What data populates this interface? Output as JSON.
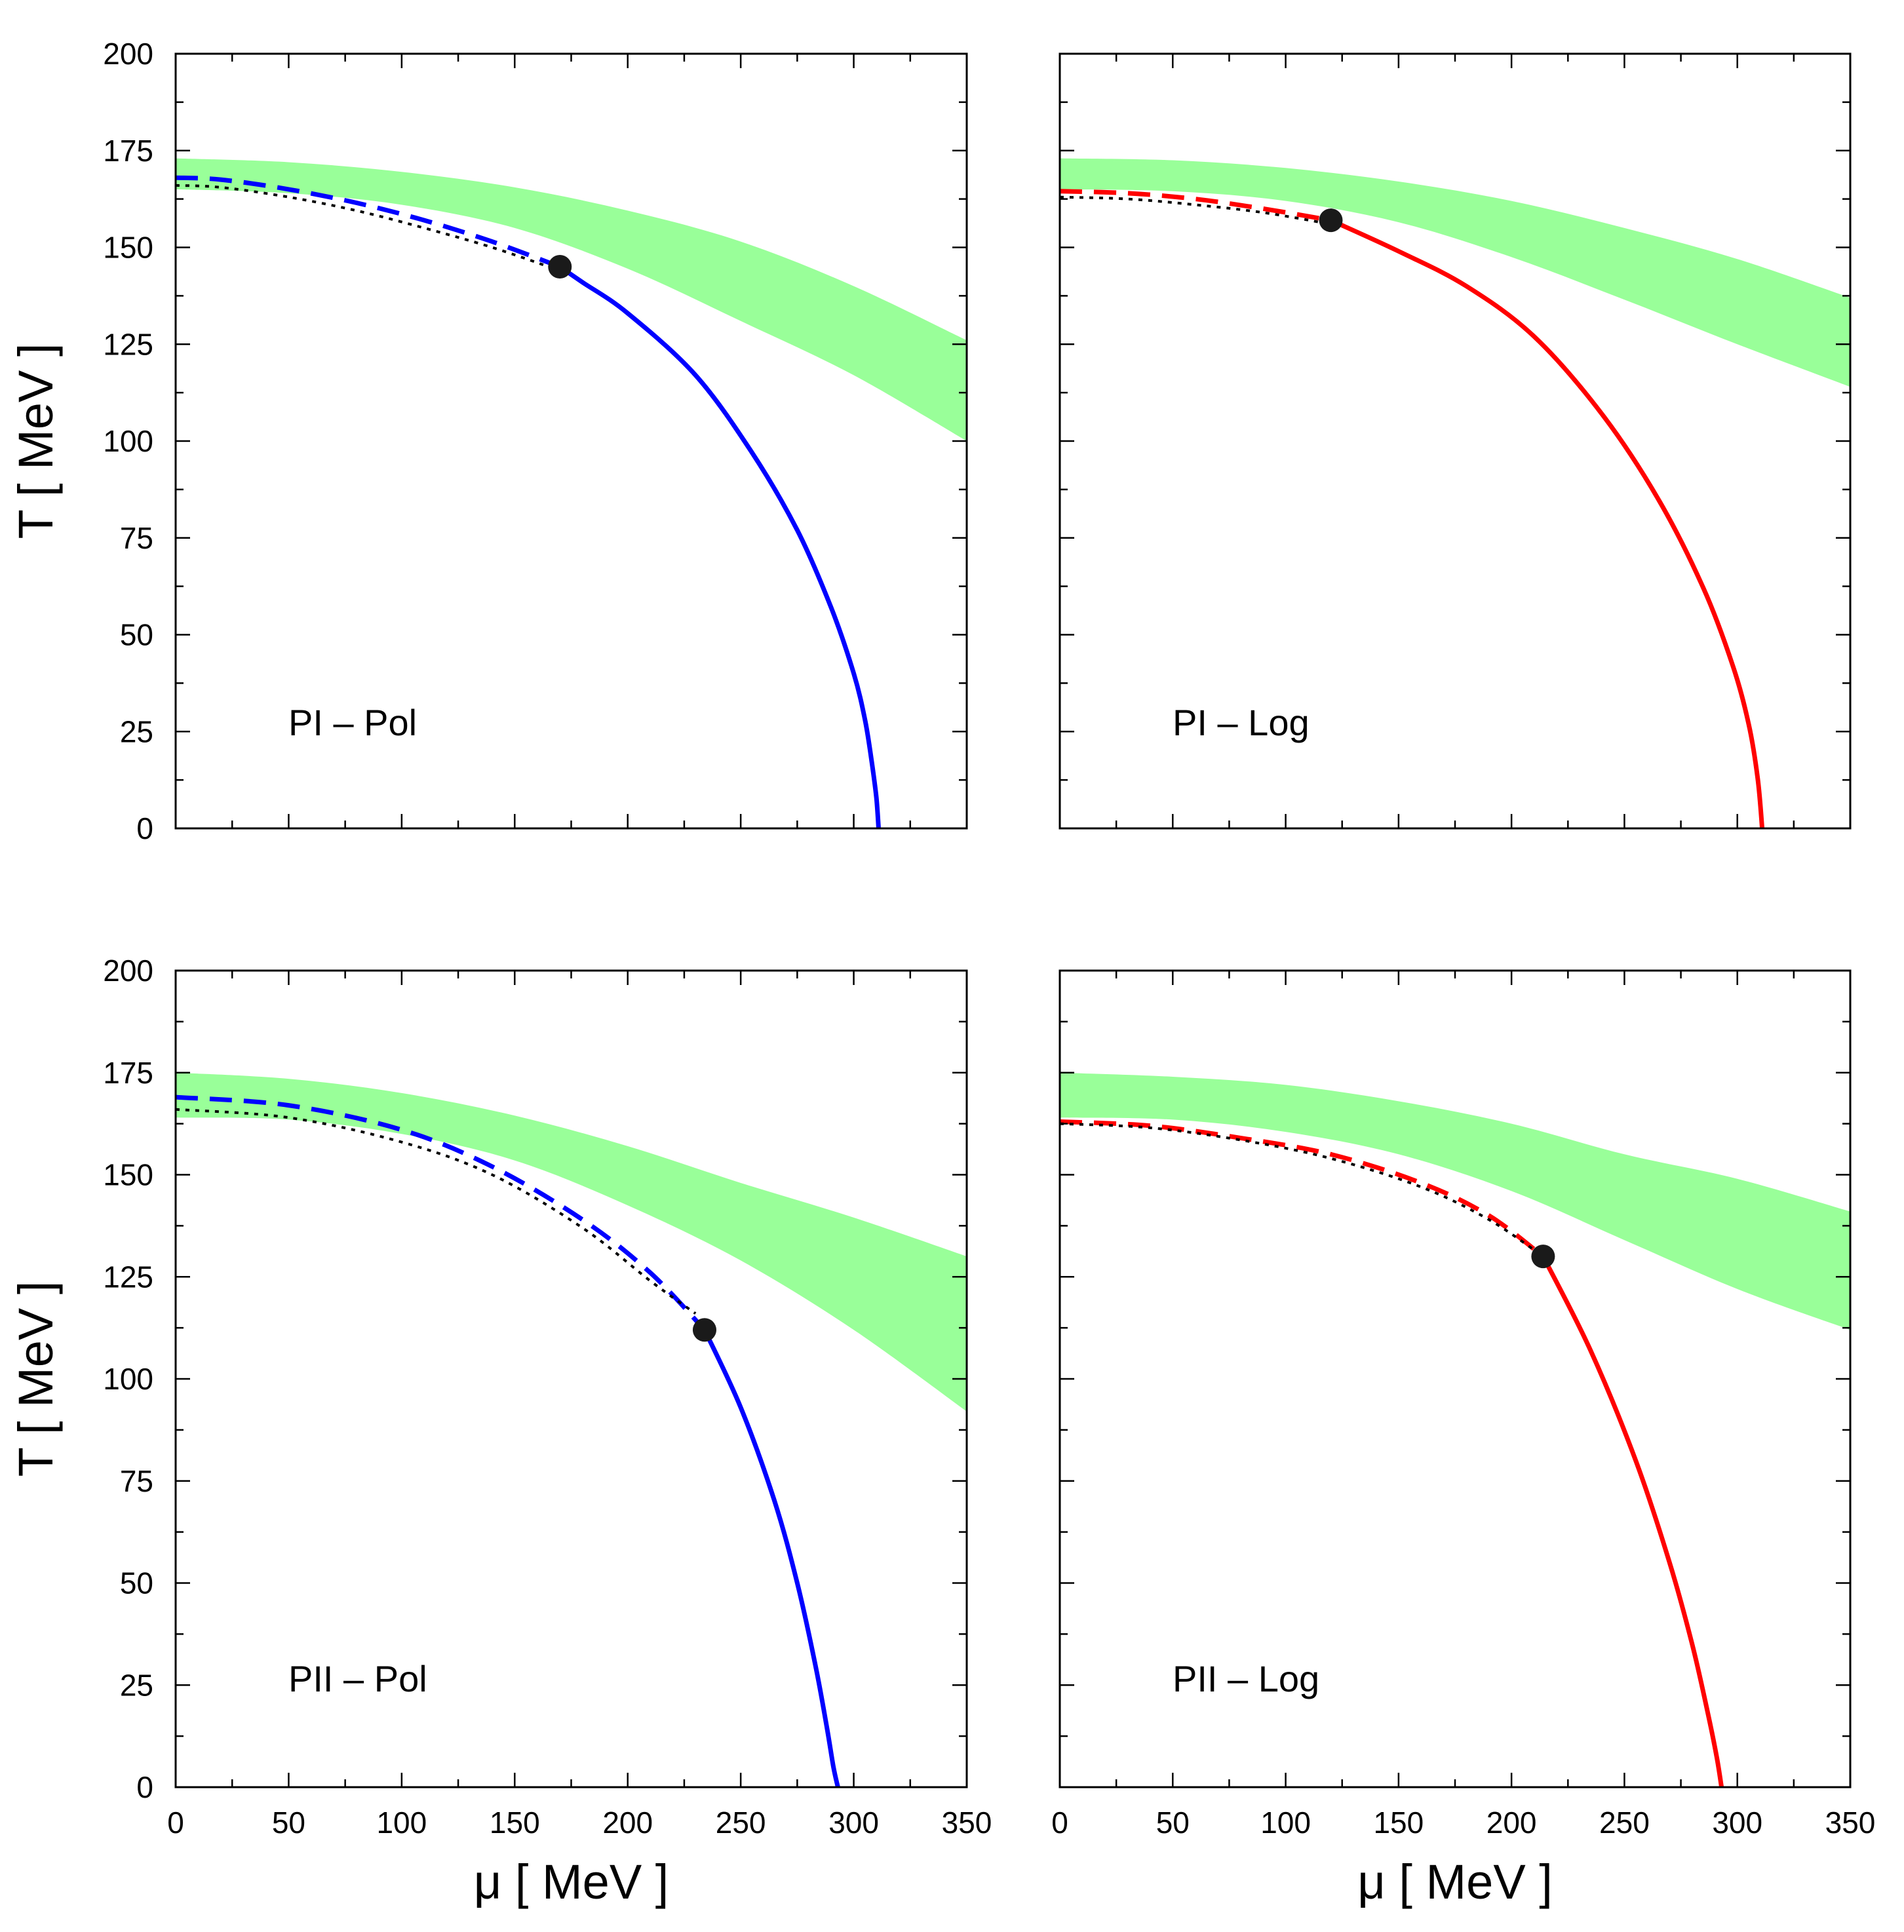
{
  "chart_data": [
    {
      "type": "line",
      "panel_label": "PI – Pol",
      "xlabel": "μ  [ MeV ]",
      "ylabel": "T  [ MeV ]",
      "xlim": [
        0,
        350
      ],
      "ylim": [
        0,
        200
      ],
      "xticks": [
        "0",
        "50",
        "100",
        "150",
        "200",
        "250",
        "300",
        "350"
      ],
      "yticks": [
        "0",
        "25",
        "50",
        "75",
        "100",
        "125",
        "150",
        "175",
        "200"
      ],
      "show_xtick_labels": false,
      "show_ytick_labels": true,
      "show_xlabel": false,
      "show_ylabel": true,
      "line_color": "#0000ff",
      "band_color": "#99ff99",
      "band": {
        "x": [
          0,
          50,
          100,
          150,
          200,
          250,
          300,
          350
        ],
        "upper": [
          173,
          172,
          169.5,
          165.5,
          159.5,
          151.5,
          140,
          126
        ],
        "lower": [
          165,
          164,
          161,
          155,
          144.5,
          131,
          117,
          100
        ]
      },
      "crossover_dashed": {
        "x": [
          0,
          20,
          50,
          80,
          110,
          140,
          170
        ],
        "y": [
          168,
          167.5,
          165,
          161.5,
          157,
          151.5,
          145
        ]
      },
      "lattice_dotted": {
        "x": [
          0,
          20,
          50,
          80,
          110,
          140,
          170
        ],
        "y": [
          166,
          165.5,
          163,
          159.5,
          155,
          150,
          144
        ]
      },
      "first_order_solid": {
        "x": [
          170,
          180,
          200,
          230,
          255,
          275,
          290,
          300,
          305,
          308,
          310,
          311
        ],
        "y": [
          145,
          141,
          133,
          117,
          97,
          77,
          57,
          40,
          28,
          17,
          8,
          0
        ]
      },
      "critical_end_point": {
        "x": 170,
        "y": 145
      }
    },
    {
      "type": "line",
      "panel_label": "PI – Log",
      "xlabel": "μ  [ MeV ]",
      "ylabel": "T  [ MeV ]",
      "xlim": [
        0,
        350
      ],
      "ylim": [
        0,
        200
      ],
      "xticks": [
        "0",
        "50",
        "100",
        "150",
        "200",
        "250",
        "300",
        "350"
      ],
      "yticks": [
        "0",
        "25",
        "50",
        "75",
        "100",
        "125",
        "150",
        "175",
        "200"
      ],
      "show_xtick_labels": false,
      "show_ytick_labels": false,
      "show_xlabel": false,
      "show_ylabel": false,
      "line_color": "#ff0000",
      "band_color": "#99ff99",
      "band": {
        "x": [
          0,
          50,
          100,
          150,
          200,
          250,
          300,
          350
        ],
        "upper": [
          173,
          172.5,
          170.5,
          167,
          162,
          155,
          147,
          137
        ],
        "lower": [
          165,
          164.5,
          162,
          156.5,
          147.5,
          136.5,
          125,
          114
        ]
      },
      "crossover_dashed": {
        "x": [
          0,
          30,
          60,
          90,
          120
        ],
        "y": [
          164.5,
          164,
          162.5,
          160,
          157
        ]
      },
      "lattice_dotted": {
        "x": [
          0,
          30,
          60,
          90,
          120
        ],
        "y": [
          163,
          162.5,
          161,
          159,
          156
        ]
      },
      "first_order_solid": {
        "x": [
          120,
          150,
          180,
          210,
          240,
          265,
          285,
          298,
          305,
          309,
          311
        ],
        "y": [
          157,
          149,
          140,
          127,
          107,
          85,
          62,
          42,
          27,
          13,
          0
        ]
      },
      "critical_end_point": {
        "x": 120,
        "y": 157
      }
    },
    {
      "type": "line",
      "panel_label": "PII – Pol",
      "xlabel": "μ  [ MeV ]",
      "ylabel": "T  [ MeV ]",
      "xlim": [
        0,
        350
      ],
      "ylim": [
        0,
        200
      ],
      "xticks": [
        "0",
        "50",
        "100",
        "150",
        "200",
        "250",
        "300",
        "350"
      ],
      "yticks": [
        "0",
        "25",
        "50",
        "75",
        "100",
        "125",
        "150",
        "175",
        "200"
      ],
      "show_xtick_labels": true,
      "show_ytick_labels": true,
      "show_xlabel": true,
      "show_ylabel": true,
      "line_color": "#0000ff",
      "band_color": "#99ff99",
      "band": {
        "x": [
          0,
          50,
          100,
          150,
          200,
          250,
          300,
          350
        ],
        "upper": [
          175,
          173.5,
          170,
          164.5,
          157,
          148,
          139.5,
          130
        ],
        "lower": [
          164,
          163.5,
          160,
          153.5,
          142.5,
          129,
          112,
          92
        ]
      },
      "crossover_dashed": {
        "x": [
          0,
          50,
          100,
          140,
          180,
          210,
          234
        ],
        "y": [
          169,
          167,
          161,
          152,
          139,
          126,
          112
        ]
      },
      "lattice_dotted": {
        "x": [
          0,
          50,
          100,
          140,
          180,
          210,
          230
        ],
        "y": [
          166,
          164,
          158,
          150,
          137,
          124,
          116
        ]
      },
      "first_order_solid": {
        "x": [
          234,
          250,
          265,
          275,
          283,
          288,
          291,
          293
        ],
        "y": [
          112,
          93,
          70,
          50,
          30,
          15,
          5,
          0
        ]
      },
      "critical_end_point": {
        "x": 234,
        "y": 112
      }
    },
    {
      "type": "line",
      "panel_label": "PII – Log",
      "xlabel": "μ  [ MeV ]",
      "ylabel": "T  [ MeV ]",
      "xlim": [
        0,
        350
      ],
      "ylim": [
        0,
        200
      ],
      "xticks": [
        "0",
        "50",
        "100",
        "150",
        "200",
        "250",
        "300",
        "350"
      ],
      "yticks": [
        "0",
        "25",
        "50",
        "75",
        "100",
        "125",
        "150",
        "175",
        "200"
      ],
      "show_xtick_labels": true,
      "show_ytick_labels": false,
      "show_xlabel": true,
      "show_ylabel": false,
      "line_color": "#ff0000",
      "band_color": "#99ff99",
      "band": {
        "x": [
          0,
          50,
          100,
          150,
          200,
          250,
          300,
          350
        ],
        "upper": [
          175,
          174,
          172,
          168,
          162.5,
          155,
          149,
          141
        ],
        "lower": [
          164,
          163.5,
          160.5,
          155,
          146,
          134,
          122,
          112
        ]
      },
      "crossover_dashed": {
        "x": [
          0,
          40,
          80,
          120,
          160,
          190,
          214
        ],
        "y": [
          163,
          162,
          159,
          155,
          148,
          140,
          130
        ]
      },
      "lattice_dotted": {
        "x": [
          0,
          40,
          80,
          120,
          160,
          190,
          214
        ],
        "y": [
          162.5,
          161.5,
          158.5,
          154,
          147,
          139,
          130
        ]
      },
      "first_order_solid": {
        "x": [
          214,
          235,
          255,
          270,
          280,
          287,
          291,
          293
        ],
        "y": [
          130,
          107,
          80,
          55,
          35,
          18,
          7,
          0
        ]
      },
      "critical_end_point": {
        "x": 214,
        "y": 130
      }
    }
  ]
}
